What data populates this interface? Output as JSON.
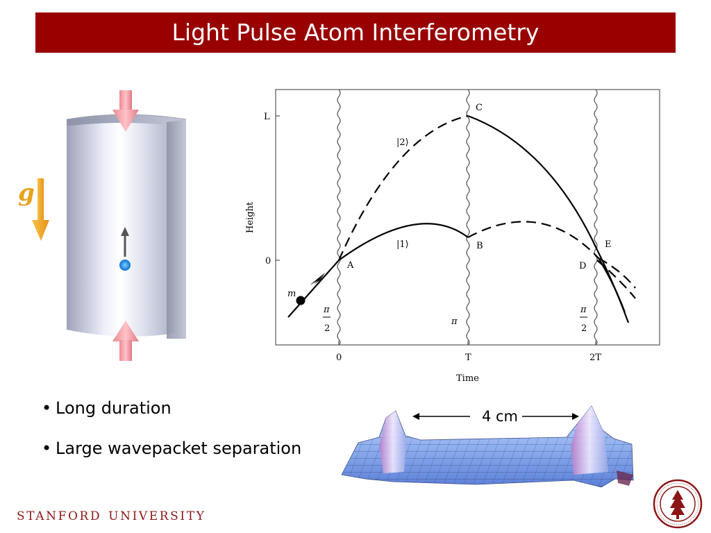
{
  "slide": {
    "title": "Light Pulse Atom Interferometry"
  },
  "cylinder_figure": {
    "gravity_label": "g"
  },
  "spacetime_diagram": {
    "ylabel": "Height",
    "xlabel": "Time",
    "y_ticks": [
      "L",
      "0"
    ],
    "x_ticks": [
      "0",
      "T",
      "2T"
    ],
    "point_labels": [
      "A",
      "B",
      "C",
      "D",
      "E"
    ],
    "state_labels": [
      "|2⟩",
      "|1⟩"
    ],
    "mass_label": "m",
    "pulse_labels": {
      "first": {
        "num": "π",
        "den": "2"
      },
      "middle": "π",
      "last": {
        "num": "π",
        "den": "2"
      }
    }
  },
  "bullets": [
    "Long duration",
    "Large wavepacket separation"
  ],
  "wavepacket_figure": {
    "separation_label": "4 cm"
  },
  "footer": {
    "org_word1": "STANFORD",
    "org_word2": "UNIVERSITY"
  },
  "colors": {
    "title_bar": "#990000",
    "stanford_cardinal": "#8c1515",
    "gravity_arrow": "#f0a020"
  }
}
